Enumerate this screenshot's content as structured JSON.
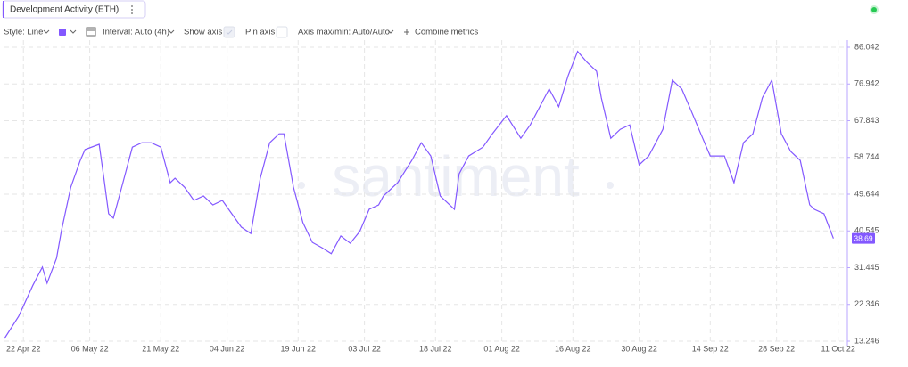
{
  "toolbar": {
    "style": "Style: Line",
    "interval": "Interval: Auto (4h)",
    "show_axis": "Show axis",
    "pin_axis": "Pin axis",
    "axis_range": "Axis max/min: Auto/Auto",
    "combine": "Combine metrics"
  },
  "watermark": "santiment",
  "chart_data": {
    "type": "line",
    "x": [
      "2022-04-18",
      "2022-04-21",
      "2022-04-24",
      "2022-04-26",
      "2022-04-27",
      "2022-04-29",
      "2022-04-30",
      "2022-05-02",
      "2022-05-04",
      "2022-05-05",
      "2022-05-08",
      "2022-05-09",
      "2022-05-10",
      "2022-05-11",
      "2022-05-13",
      "2022-05-15",
      "2022-05-17",
      "2022-05-19",
      "2022-05-21",
      "2022-05-23",
      "2022-05-24",
      "2022-05-26",
      "2022-05-28",
      "2022-05-30",
      "2022-06-01",
      "2022-06-03",
      "2022-06-05",
      "2022-06-07",
      "2022-06-09",
      "2022-06-11",
      "2022-06-13",
      "2022-06-15",
      "2022-06-16",
      "2022-06-18",
      "2022-06-20",
      "2022-06-22",
      "2022-06-24",
      "2022-06-26",
      "2022-06-28",
      "2022-06-30",
      "2022-07-02",
      "2022-07-04",
      "2022-07-06",
      "2022-07-07",
      "2022-07-10",
      "2022-07-13",
      "2022-07-15",
      "2022-07-17",
      "2022-07-19",
      "2022-07-22",
      "2022-07-23",
      "2022-07-25",
      "2022-07-28",
      "2022-07-30",
      "2022-08-02",
      "2022-08-05",
      "2022-08-07",
      "2022-08-10",
      "2022-08-11",
      "2022-08-13",
      "2022-08-15",
      "2022-08-17",
      "2022-08-19",
      "2022-08-21",
      "2022-08-22",
      "2022-08-24",
      "2022-08-26",
      "2022-08-28",
      "2022-08-30",
      "2022-09-01",
      "2022-09-04",
      "2022-09-06",
      "2022-09-08",
      "2022-09-10",
      "2022-09-12",
      "2022-09-14",
      "2022-09-17",
      "2022-09-19",
      "2022-09-21",
      "2022-09-23",
      "2022-09-25",
      "2022-09-27",
      "2022-09-29",
      "2022-10-01",
      "2022-10-03",
      "2022-10-05",
      "2022-10-06",
      "2022-10-08",
      "2022-10-10"
    ],
    "series": [
      {
        "name": "Development Activity (ETH)",
        "color": "#8358ff",
        "values": [
          13.9,
          19.4,
          27.1,
          31.6,
          27.6,
          33.8,
          40.4,
          51.4,
          58.0,
          60.7,
          62.0,
          53.6,
          44.8,
          43.7,
          52.5,
          61.3,
          62.4,
          62.4,
          61.3,
          52.5,
          53.6,
          51.4,
          48.1,
          49.2,
          47.0,
          48.1,
          44.8,
          41.5,
          39.9,
          53.6,
          62.4,
          64.6,
          64.6,
          51.4,
          42.6,
          37.7,
          36.4,
          34.9,
          39.3,
          37.5,
          40.4,
          45.9,
          47.0,
          49.2,
          52.5,
          58.0,
          62.4,
          59.1,
          49.2,
          45.9,
          54.7,
          59.1,
          61.3,
          64.6,
          69.1,
          63.5,
          66.8,
          73.5,
          75.7,
          71.3,
          79.0,
          85.0,
          82.3,
          80.1,
          73.5,
          63.5,
          65.7,
          66.8,
          56.9,
          59.1,
          65.7,
          77.9,
          75.7,
          70.2,
          64.6,
          59.1,
          59.1,
          52.5,
          62.4,
          64.6,
          73.5,
          77.9,
          64.6,
          60.2,
          58.0,
          47.0,
          45.9,
          44.8,
          38.69
        ]
      }
    ],
    "xlim": [
      "2022-04-18",
      "2022-10-12"
    ],
    "xticks": [
      {
        "value": "2022-04-22",
        "label": "22 Apr 22"
      },
      {
        "value": "2022-05-06",
        "label": "06 May 22"
      },
      {
        "value": "2022-05-21",
        "label": "21 May 22"
      },
      {
        "value": "2022-06-04",
        "label": "04 Jun 22"
      },
      {
        "value": "2022-06-19",
        "label": "19 Jun 22"
      },
      {
        "value": "2022-07-03",
        "label": "03 Jul 22"
      },
      {
        "value": "2022-07-18",
        "label": "18 Jul 22"
      },
      {
        "value": "2022-08-01",
        "label": "01 Aug 22"
      },
      {
        "value": "2022-08-16",
        "label": "16 Aug 22"
      },
      {
        "value": "2022-08-30",
        "label": "30 Aug 22"
      },
      {
        "value": "2022-09-14",
        "label": "14 Sep 22"
      },
      {
        "value": "2022-09-28",
        "label": "28 Sep 22"
      },
      {
        "value": "2022-10-11",
        "label": "11 Oct 22"
      }
    ],
    "ylim": [
      13.246,
      86.042
    ],
    "yticks": [
      13.246,
      22.346,
      31.445,
      40.545,
      49.644,
      58.744,
      67.843,
      76.942,
      86.042
    ],
    "grid": true
  }
}
